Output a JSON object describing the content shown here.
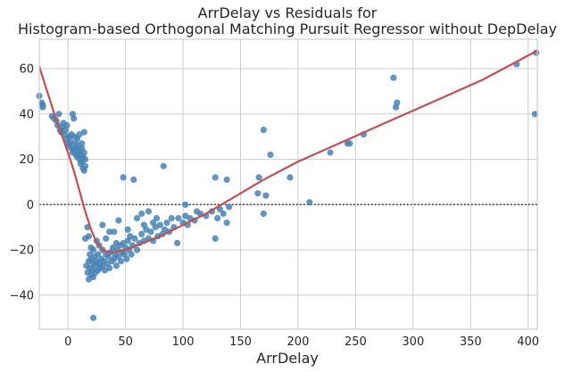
{
  "chart_data": {
    "type": "scatter",
    "title_lines": [
      "ArrDelay vs Residuals for",
      "Histogram-based Orthogonal Matching Pursuit Regressor without DepDelay"
    ],
    "xlabel": "ArrDelay",
    "ylabel": "",
    "xlim": [
      -25,
      408
    ],
    "ylim": [
      -55,
      73
    ],
    "xticks": [
      0,
      50,
      100,
      150,
      200,
      250,
      300,
      350,
      400
    ],
    "yticks": [
      -40,
      -20,
      0,
      20,
      40,
      60
    ],
    "grid": true,
    "zero_line": {
      "y": 0,
      "style": "dotted",
      "color": "#333333"
    },
    "colors": {
      "points": "#4682b4",
      "curve": "#c44e52",
      "grid": "#cccccc",
      "axes": "#cccccc"
    },
    "scatter": {
      "name": "",
      "points": [
        [
          -25,
          48
        ],
        [
          -23,
          45
        ],
        [
          -22,
          44
        ],
        [
          -22,
          43
        ],
        [
          -14,
          39
        ],
        [
          -12,
          38
        ],
        [
          -10,
          37
        ],
        [
          -9,
          35
        ],
        [
          -8,
          40
        ],
        [
          -7,
          33
        ],
        [
          -6,
          32
        ],
        [
          -5,
          34
        ],
        [
          -4,
          36
        ],
        [
          -3,
          31
        ],
        [
          -2,
          33
        ],
        [
          -1,
          29
        ],
        [
          -1,
          35
        ],
        [
          0,
          27
        ],
        [
          1,
          30
        ],
        [
          1,
          26
        ],
        [
          2,
          28
        ],
        [
          3,
          31
        ],
        [
          3,
          25
        ],
        [
          4,
          23
        ],
        [
          4,
          40
        ],
        [
          5,
          38
        ],
        [
          5,
          24
        ],
        [
          6,
          27
        ],
        [
          6,
          30
        ],
        [
          7,
          22
        ],
        [
          7,
          25
        ],
        [
          8,
          29
        ],
        [
          8,
          21
        ],
        [
          9,
          26
        ],
        [
          9,
          23
        ],
        [
          10,
          31
        ],
        [
          10,
          20
        ],
        [
          10,
          24
        ],
        [
          11,
          18
        ],
        [
          11,
          22
        ],
        [
          12,
          27
        ],
        [
          12,
          19
        ],
        [
          12,
          25
        ],
        [
          13,
          16
        ],
        [
          13,
          21
        ],
        [
          14,
          15
        ],
        [
          14,
          23
        ],
        [
          14,
          32
        ],
        [
          15,
          17
        ],
        [
          15,
          20
        ],
        [
          22,
          -50
        ],
        [
          16,
          -27
        ],
        [
          17,
          -30
        ],
        [
          18,
          -25
        ],
        [
          18,
          -33
        ],
        [
          19,
          -28
        ],
        [
          20,
          -31
        ],
        [
          20,
          -24
        ],
        [
          21,
          -29
        ],
        [
          22,
          -26
        ],
        [
          22,
          -32
        ],
        [
          23,
          -23
        ],
        [
          24,
          -27
        ],
        [
          24,
          -30
        ],
        [
          25,
          -25
        ],
        [
          26,
          -29
        ],
        [
          26,
          -22
        ],
        [
          27,
          -26
        ],
        [
          28,
          -28
        ],
        [
          29,
          -24
        ],
        [
          30,
          -27
        ],
        [
          30,
          -20
        ],
        [
          31,
          -25
        ],
        [
          32,
          -29
        ],
        [
          33,
          -22
        ],
        [
          34,
          -26
        ],
        [
          35,
          -23
        ],
        [
          36,
          -28
        ],
        [
          37,
          -21
        ],
        [
          38,
          -25
        ],
        [
          39,
          -19
        ],
        [
          40,
          -24
        ],
        [
          41,
          -22
        ],
        [
          42,
          -27
        ],
        [
          43,
          -20
        ],
        [
          44,
          -23
        ],
        [
          45,
          -18
        ],
        [
          46,
          -25
        ],
        [
          47,
          -21
        ],
        [
          48,
          -17
        ],
        [
          49,
          -22
        ],
        [
          50,
          -19
        ],
        [
          51,
          -24
        ],
        [
          52,
          -16
        ],
        [
          53,
          -20
        ],
        [
          54,
          -14
        ],
        [
          55,
          -22
        ],
        [
          56,
          -18
        ],
        [
          58,
          -15
        ],
        [
          60,
          -20
        ],
        [
          62,
          -17
        ],
        [
          64,
          -13
        ],
        [
          66,
          -16
        ],
        [
          68,
          -11
        ],
        [
          70,
          -15
        ],
        [
          72,
          -12
        ],
        [
          74,
          -16
        ],
        [
          76,
          -10
        ],
        [
          78,
          -14
        ],
        [
          80,
          -9
        ],
        [
          82,
          -13
        ],
        [
          84,
          -11
        ],
        [
          86,
          -8
        ],
        [
          88,
          -12
        ],
        [
          90,
          -6
        ],
        [
          92,
          -10
        ],
        [
          95,
          -17
        ],
        [
          100,
          -8
        ],
        [
          102,
          -5
        ],
        [
          104,
          -9
        ],
        [
          106,
          -6
        ],
        [
          110,
          -7
        ],
        [
          115,
          -4
        ],
        [
          120,
          -5
        ],
        [
          125,
          -3
        ],
        [
          128,
          -15
        ],
        [
          130,
          -6
        ],
        [
          132,
          -2
        ],
        [
          135,
          -4
        ],
        [
          138,
          -8
        ],
        [
          140,
          -1
        ],
        [
          17,
          -10
        ],
        [
          18,
          -14
        ],
        [
          20,
          -19
        ],
        [
          25,
          -16
        ],
        [
          30,
          -9
        ],
        [
          40,
          -12
        ],
        [
          44,
          -7
        ],
        [
          60,
          -6
        ],
        [
          64,
          -4
        ],
        [
          70,
          -3
        ],
        [
          77,
          -6
        ],
        [
          102,
          0
        ],
        [
          48,
          12
        ],
        [
          57,
          11
        ],
        [
          83,
          17
        ],
        [
          128,
          12
        ],
        [
          138,
          11
        ],
        [
          166,
          12
        ],
        [
          170,
          33
        ],
        [
          176,
          22
        ],
        [
          165,
          5
        ],
        [
          172,
          4
        ],
        [
          170,
          -4
        ],
        [
          193,
          12
        ],
        [
          210,
          1
        ],
        [
          228,
          23
        ],
        [
          243,
          27
        ],
        [
          245,
          27
        ],
        [
          257,
          31
        ],
        [
          283,
          56
        ],
        [
          285,
          43
        ],
        [
          286,
          45
        ],
        [
          390,
          62
        ],
        [
          407,
          67
        ],
        [
          406,
          40
        ],
        [
          15,
          -15
        ],
        [
          19,
          -22
        ],
        [
          22,
          -20
        ],
        [
          27,
          -18
        ],
        [
          33,
          -15
        ],
        [
          36,
          -12
        ],
        [
          42,
          -17
        ],
        [
          52,
          -11
        ],
        [
          66,
          -9
        ],
        [
          74,
          -8
        ],
        [
          96,
          -6
        ],
        [
          112,
          -3
        ]
      ]
    },
    "curve": {
      "name": "",
      "x": [
        -25,
        -20,
        -15,
        -10,
        -5,
        0,
        5,
        10,
        15,
        20,
        25,
        30,
        35,
        40,
        50,
        60,
        80,
        100,
        120,
        140,
        170,
        200,
        240,
        280,
        320,
        360,
        408
      ],
      "y": [
        61,
        53,
        45,
        37,
        30,
        23,
        15,
        6,
        -3,
        -11,
        -17,
        -20,
        -21,
        -21,
        -20,
        -18,
        -14,
        -9,
        -4,
        2,
        11,
        19,
        28,
        37,
        46,
        55,
        68
      ]
    }
  }
}
